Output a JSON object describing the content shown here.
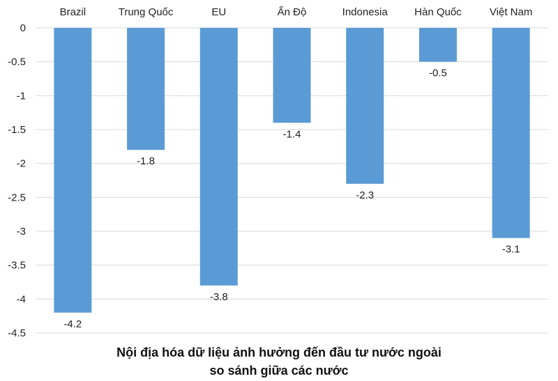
{
  "chart_data": {
    "type": "bar",
    "categories": [
      "Brazil",
      "Trung Quốc",
      "EU",
      "Ấn Độ",
      "Indonesia",
      "Hàn Quốc",
      "Việt Nam"
    ],
    "values": [
      -4.2,
      -1.8,
      -3.8,
      -1.4,
      -2.3,
      -0.5,
      -3.1
    ],
    "value_labels": [
      "-4.2",
      "-1.8",
      "-3.8",
      "-1.4",
      "-2.3",
      "-0.5",
      "-3.1"
    ],
    "title_lines": [
      "Nội địa hóa dữ liệu ảnh hưởng đến đầu tư nước ngoài",
      "so sánh giữa các nước"
    ],
    "xlabel": "",
    "ylabel": "",
    "ylim": [
      -4.5,
      0
    ],
    "yticks": [
      0,
      -0.5,
      -1,
      -1.5,
      -2,
      -2.5,
      -3,
      -3.5,
      -4,
      -4.5
    ],
    "ytick_labels": [
      "0",
      "-0.5",
      "-1",
      "-1.5",
      "-2",
      "-2.5",
      "-3",
      "-3.5",
      "-4",
      "-4.5"
    ],
    "grid": true,
    "legend": "none",
    "category_axis_position": "top",
    "bar_color": "#5b9bd5",
    "grid_color": "#d9d9d9"
  }
}
